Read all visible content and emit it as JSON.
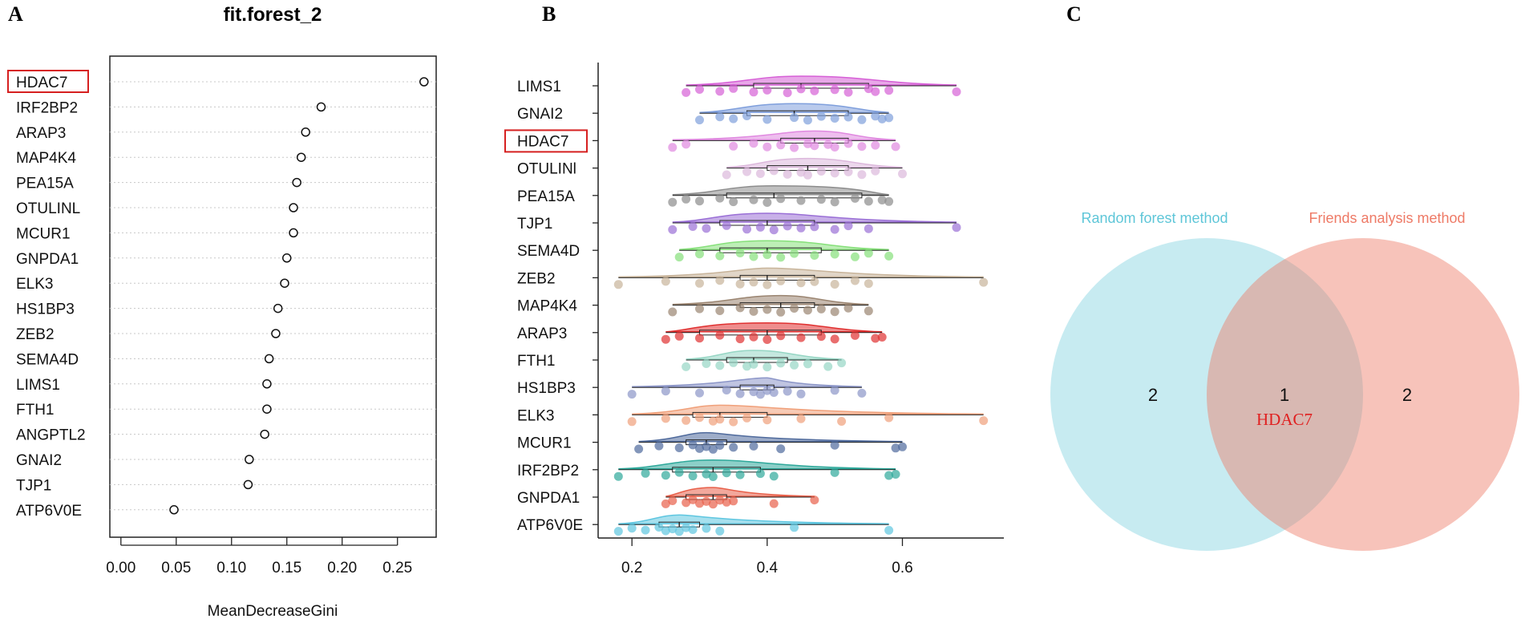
{
  "panels": {
    "a": "A",
    "b": "B",
    "c": "C"
  },
  "chart_data": [
    {
      "type": "scatter",
      "panel": "A",
      "title": "fit.forest_2",
      "xlabel": "MeanDecreaseGini",
      "ylabel": "",
      "xlim": [
        -0.01,
        0.285
      ],
      "xticks": [
        "0.00",
        "0.05",
        "0.10",
        "0.15",
        "0.20",
        "0.25"
      ],
      "xtick_values": [
        0,
        0.05,
        0.1,
        0.15,
        0.2,
        0.25
      ],
      "highlight": "HDAC7",
      "categories": [
        "HDAC7",
        "IRF2BP2",
        "ARAP3",
        "MAP4K4",
        "PEA15A",
        "OTULINL",
        "MCUR1",
        "GNPDA1",
        "ELK3",
        "HS1BP3",
        "ZEB2",
        "SEMA4D",
        "LIMS1",
        "FTH1",
        "ANGPTL2",
        "GNAI2",
        "TJP1",
        "ATP6V0E"
      ],
      "values": [
        0.274,
        0.181,
        0.167,
        0.163,
        0.159,
        0.156,
        0.156,
        0.15,
        0.148,
        0.142,
        0.14,
        0.134,
        0.132,
        0.132,
        0.13,
        0.116,
        0.115,
        0.048
      ]
    },
    {
      "type": "raincloud",
      "panel": "B",
      "xlim": [
        0.15,
        0.75
      ],
      "xticks": [
        "0.2",
        "0.4",
        "0.6"
      ],
      "xtick_values": [
        0.2,
        0.4,
        0.6
      ],
      "highlight": "HDAC7",
      "series": [
        {
          "name": "LIMS1",
          "color": "#d65fd6",
          "min": 0.28,
          "q1": 0.38,
          "median": 0.45,
          "q3": 0.55,
          "max": 0.68,
          "points": [
            0.28,
            0.3,
            0.33,
            0.35,
            0.38,
            0.4,
            0.43,
            0.45,
            0.47,
            0.5,
            0.52,
            0.55,
            0.56,
            0.58,
            0.68
          ]
        },
        {
          "name": "GNAI2",
          "color": "#7f9fdc",
          "min": 0.3,
          "q1": 0.37,
          "median": 0.44,
          "q3": 0.52,
          "max": 0.58,
          "points": [
            0.3,
            0.33,
            0.35,
            0.37,
            0.4,
            0.44,
            0.46,
            0.48,
            0.5,
            0.52,
            0.54,
            0.56,
            0.57,
            0.58
          ]
        },
        {
          "name": "HDAC7",
          "color": "#e089e0",
          "min": 0.26,
          "q1": 0.42,
          "median": 0.47,
          "q3": 0.52,
          "max": 0.59,
          "points": [
            0.26,
            0.28,
            0.35,
            0.38,
            0.4,
            0.42,
            0.44,
            0.46,
            0.47,
            0.49,
            0.5,
            0.52,
            0.54,
            0.56,
            0.59
          ]
        },
        {
          "name": "OTULINl",
          "color": "#dcb8dc",
          "min": 0.34,
          "q1": 0.4,
          "median": 0.46,
          "q3": 0.52,
          "max": 0.6,
          "points": [
            0.34,
            0.37,
            0.39,
            0.41,
            0.43,
            0.45,
            0.46,
            0.48,
            0.5,
            0.52,
            0.54,
            0.56,
            0.6
          ]
        },
        {
          "name": "PEA15A",
          "color": "#8c8c8c",
          "min": 0.26,
          "q1": 0.34,
          "median": 0.41,
          "q3": 0.54,
          "max": 0.58,
          "points": [
            0.26,
            0.28,
            0.3,
            0.33,
            0.35,
            0.38,
            0.4,
            0.42,
            0.45,
            0.48,
            0.5,
            0.53,
            0.55,
            0.57,
            0.58
          ]
        },
        {
          "name": "TJP1",
          "color": "#9a6fd6",
          "min": 0.26,
          "q1": 0.33,
          "median": 0.4,
          "q3": 0.47,
          "max": 0.68,
          "points": [
            0.26,
            0.29,
            0.31,
            0.34,
            0.37,
            0.39,
            0.41,
            0.43,
            0.45,
            0.47,
            0.5,
            0.52,
            0.55,
            0.68
          ]
        },
        {
          "name": "SEMA4D",
          "color": "#86e07a",
          "min": 0.27,
          "q1": 0.33,
          "median": 0.4,
          "q3": 0.48,
          "max": 0.58,
          "points": [
            0.27,
            0.3,
            0.33,
            0.36,
            0.38,
            0.4,
            0.42,
            0.44,
            0.47,
            0.5,
            0.53,
            0.55,
            0.58
          ]
        },
        {
          "name": "ZEB2",
          "color": "#c8b49a",
          "min": 0.18,
          "q1": 0.36,
          "median": 0.4,
          "q3": 0.47,
          "max": 0.72,
          "points": [
            0.18,
            0.25,
            0.3,
            0.33,
            0.36,
            0.38,
            0.4,
            0.42,
            0.45,
            0.47,
            0.5,
            0.53,
            0.55,
            0.72
          ]
        },
        {
          "name": "MAP4K4",
          "color": "#9a8470",
          "min": 0.26,
          "q1": 0.36,
          "median": 0.42,
          "q3": 0.47,
          "max": 0.55,
          "points": [
            0.26,
            0.3,
            0.33,
            0.36,
            0.38,
            0.4,
            0.42,
            0.44,
            0.46,
            0.48,
            0.5,
            0.52,
            0.55
          ]
        },
        {
          "name": "ARAP3",
          "color": "#e03030",
          "min": 0.25,
          "q1": 0.3,
          "median": 0.4,
          "q3": 0.48,
          "max": 0.57,
          "points": [
            0.25,
            0.27,
            0.3,
            0.33,
            0.36,
            0.38,
            0.4,
            0.42,
            0.45,
            0.48,
            0.5,
            0.53,
            0.56,
            0.57
          ]
        },
        {
          "name": "FTH1",
          "color": "#96d6c4",
          "min": 0.28,
          "q1": 0.34,
          "median": 0.38,
          "q3": 0.43,
          "max": 0.51,
          "points": [
            0.28,
            0.31,
            0.33,
            0.35,
            0.37,
            0.38,
            0.4,
            0.42,
            0.44,
            0.46,
            0.49,
            0.51
          ]
        },
        {
          "name": "HS1BP3",
          "color": "#8c96c8",
          "min": 0.2,
          "q1": 0.36,
          "median": 0.4,
          "q3": 0.41,
          "max": 0.54,
          "points": [
            0.2,
            0.25,
            0.3,
            0.34,
            0.36,
            0.38,
            0.39,
            0.4,
            0.41,
            0.43,
            0.45,
            0.5,
            0.54
          ]
        },
        {
          "name": "ELK3",
          "color": "#f0a07a",
          "min": 0.2,
          "q1": 0.29,
          "median": 0.33,
          "q3": 0.4,
          "max": 0.72,
          "points": [
            0.2,
            0.25,
            0.28,
            0.3,
            0.32,
            0.33,
            0.35,
            0.37,
            0.4,
            0.45,
            0.51,
            0.58,
            0.72
          ]
        },
        {
          "name": "MCUR1",
          "color": "#4f6a9c",
          "min": 0.21,
          "q1": 0.28,
          "median": 0.31,
          "q3": 0.34,
          "max": 0.6,
          "points": [
            0.21,
            0.24,
            0.27,
            0.29,
            0.3,
            0.31,
            0.32,
            0.33,
            0.35,
            0.38,
            0.42,
            0.5,
            0.59,
            0.6
          ]
        },
        {
          "name": "IRF2BP2",
          "color": "#2ea89a",
          "min": 0.18,
          "q1": 0.26,
          "median": 0.32,
          "q3": 0.39,
          "max": 0.59,
          "points": [
            0.18,
            0.22,
            0.25,
            0.27,
            0.29,
            0.31,
            0.32,
            0.34,
            0.36,
            0.39,
            0.41,
            0.5,
            0.58,
            0.59
          ]
        },
        {
          "name": "GNPDA1",
          "color": "#e8604a",
          "min": 0.25,
          "q1": 0.28,
          "median": 0.32,
          "q3": 0.34,
          "max": 0.47,
          "points": [
            0.25,
            0.26,
            0.28,
            0.29,
            0.3,
            0.31,
            0.32,
            0.33,
            0.34,
            0.35,
            0.41,
            0.47
          ]
        },
        {
          "name": "ATP6V0E",
          "color": "#5ec6e0",
          "min": 0.18,
          "q1": 0.24,
          "median": 0.27,
          "q3": 0.3,
          "max": 0.58,
          "points": [
            0.18,
            0.2,
            0.22,
            0.24,
            0.25,
            0.26,
            0.27,
            0.28,
            0.29,
            0.31,
            0.33,
            0.44,
            0.58
          ]
        }
      ]
    },
    {
      "type": "venn",
      "panel": "C",
      "sets": [
        {
          "name": "Random forest method",
          "color": "#5ec6d8",
          "only": "2"
        },
        {
          "name": "Friends analysis method",
          "color": "#ee7a66",
          "only": "2"
        }
      ],
      "intersection": {
        "count": "1",
        "gene": "HDAC7",
        "gene_color": "#e02020"
      }
    }
  ]
}
